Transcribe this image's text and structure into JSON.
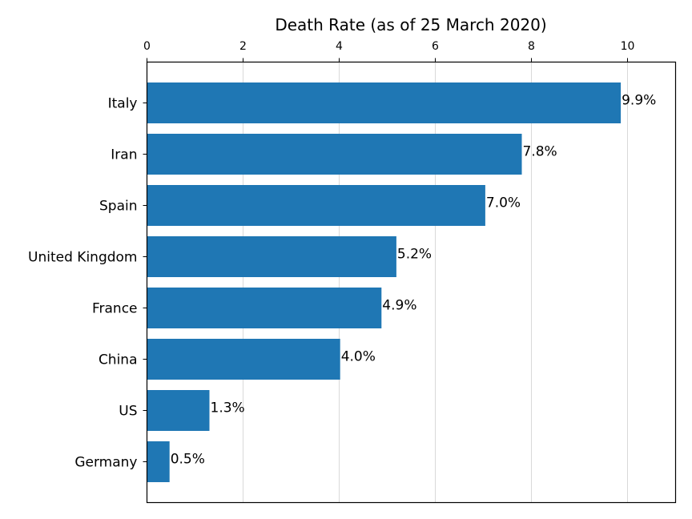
{
  "chart_data": {
    "type": "bar",
    "orientation": "horizontal",
    "title": "Death Rate (as of 25 March 2020)",
    "xlabel": "",
    "ylabel": "",
    "categories": [
      "Italy",
      "Iran",
      "Spain",
      "United Kingdom",
      "France",
      "China",
      "US",
      "Germany"
    ],
    "values": [
      9.86,
      7.8,
      7.04,
      5.19,
      4.88,
      4.02,
      1.3,
      0.47
    ],
    "data_labels": [
      "9.9%",
      "7.8%",
      "7.0%",
      "5.2%",
      "4.9%",
      "4.0%",
      "1.3%",
      "0.5%"
    ],
    "x_ticks": [
      "0",
      "2",
      "4",
      "6",
      "8",
      "10"
    ],
    "xlim": [
      0,
      11
    ],
    "x_axis_position": "top",
    "grid": "vertical",
    "legend": "none",
    "bar_color": "#1f77b4",
    "grid_color": "#d9d9d9"
  }
}
